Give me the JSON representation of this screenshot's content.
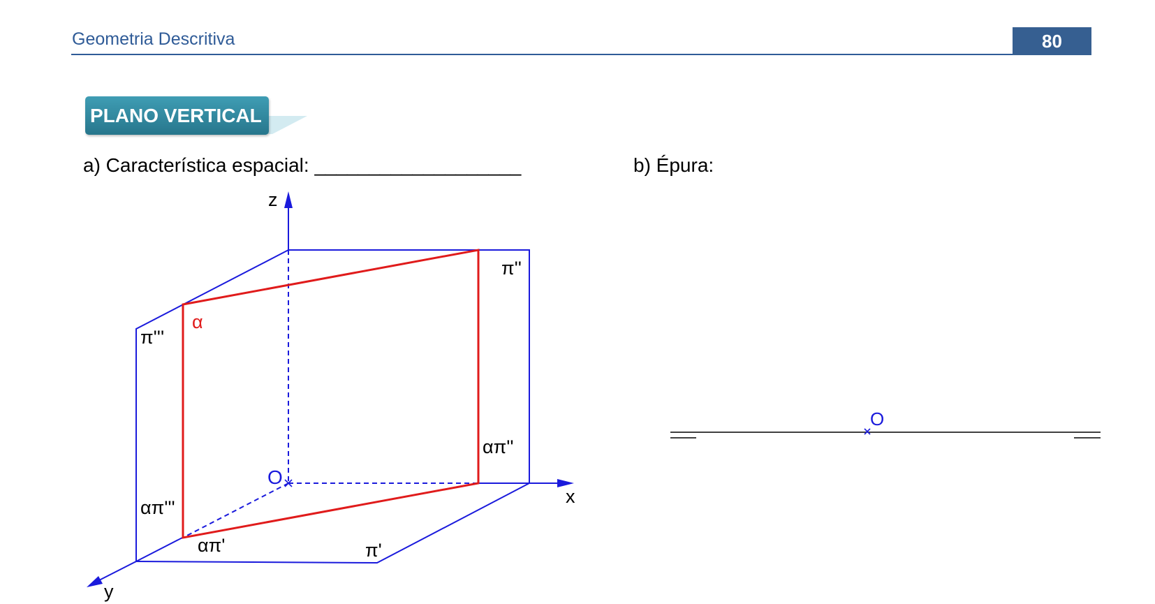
{
  "header": {
    "title": "Geometria Descritiva",
    "page_number": "80"
  },
  "section_tag": "PLANO VERTICAL",
  "question_a": "a) Característica espacial: ___________________",
  "question_b": "b) Épura:",
  "figure_labels": {
    "z": "z",
    "x": "x",
    "y": "y",
    "origin": "O",
    "pi2": "π''",
    "pi3": "π'''",
    "pi1": "π'",
    "alpha": "α",
    "alpha_pi2": "απ''",
    "alpha_pi3": "απ'''",
    "alpha_pi1": "απ'"
  },
  "epura": {
    "origin": "O"
  },
  "colors": {
    "blue": "#1a1adc",
    "red": "#e01b1b",
    "header_blue": "#365f91"
  }
}
